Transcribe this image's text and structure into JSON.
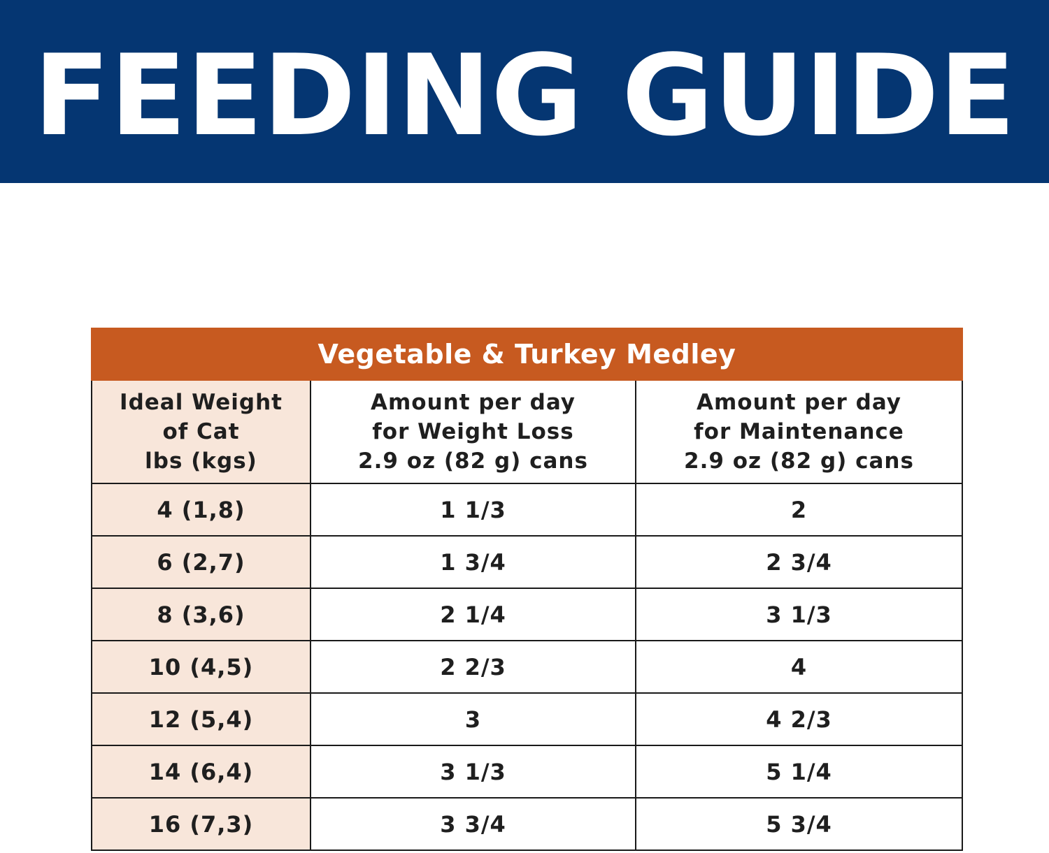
{
  "banner": {
    "title": "FEEDING GUIDE"
  },
  "table": {
    "title": "Vegetable & Turkey Medley",
    "headers": [
      [
        "Ideal Weight",
        "of Cat",
        "lbs (kgs)"
      ],
      [
        "Amount per day",
        "for Weight Loss",
        "2.9 oz (82 g) cans"
      ],
      [
        "Amount per day",
        "for Maintenance",
        "2.9 oz (82 g) cans"
      ]
    ],
    "rows": [
      [
        "4 (1,8)",
        "1 1/3",
        "2"
      ],
      [
        "6 (2,7)",
        "1 3/4",
        "2 3/4"
      ],
      [
        "8 (3,6)",
        "2 1/4",
        "3 1/3"
      ],
      [
        "10 (4,5)",
        "2 2/3",
        "4"
      ],
      [
        "12 (5,4)",
        "3",
        "4 2/3"
      ],
      [
        "14 (6,4)",
        "3 1/3",
        "5 1/4"
      ],
      [
        "16 (7,3)",
        "3 3/4",
        "5 3/4"
      ]
    ]
  },
  "colors": {
    "banner_bg": "#053672",
    "table_title_bg": "#c75a20",
    "weight_column_bg": "#f8e6da",
    "text": "#1f1f1f"
  }
}
